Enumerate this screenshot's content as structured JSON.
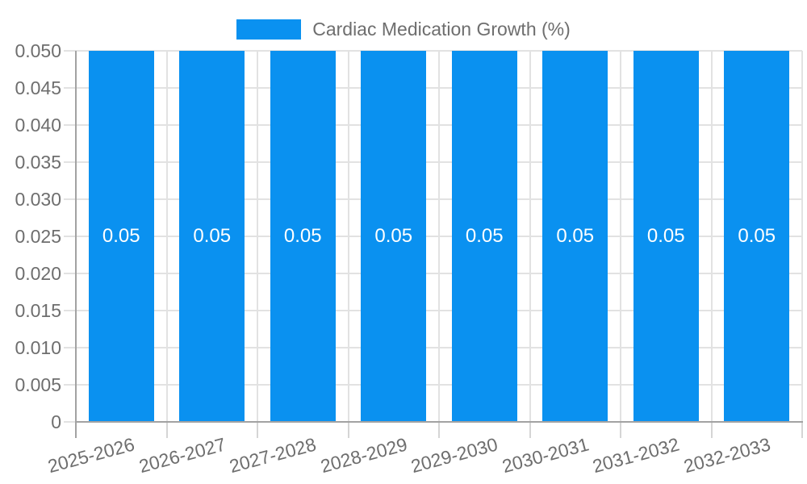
{
  "chart_data": {
    "type": "bar",
    "title": "",
    "legend_label": "Cardiac Medication Growth (%)",
    "legend_position": "top",
    "categories": [
      "2025-2026",
      "2026-2027",
      "2027-2028",
      "2028-2029",
      "2029-2030",
      "2030-2031",
      "2031-2032",
      "2032-2033"
    ],
    "series": [
      {
        "name": "Cardiac Medication Growth (%)",
        "values": [
          0.05,
          0.05,
          0.05,
          0.05,
          0.05,
          0.05,
          0.05,
          0.05
        ]
      }
    ],
    "bar_value_labels": [
      "0.05",
      "0.05",
      "0.05",
      "0.05",
      "0.05",
      "0.05",
      "0.05",
      "0.05"
    ],
    "xlabel": "",
    "ylabel": "",
    "ylim": [
      0,
      0.05
    ],
    "ytick_step": 0.005,
    "ytick_labels": [
      "0.050",
      "0.045",
      "0.040",
      "0.035",
      "0.030",
      "0.025",
      "0.020",
      "0.015",
      "0.010",
      "0.005",
      "0"
    ],
    "grid": true,
    "xlabel_rotation_deg": -15,
    "colors": {
      "bar": "#0a91f0",
      "grid": "#e2e2e2",
      "axis": "#a2a2a2",
      "tick": "#d5d5d5",
      "label_text": "#6e6e6e",
      "bar_label_text": "#ffffff",
      "background": "#ffffff"
    }
  }
}
